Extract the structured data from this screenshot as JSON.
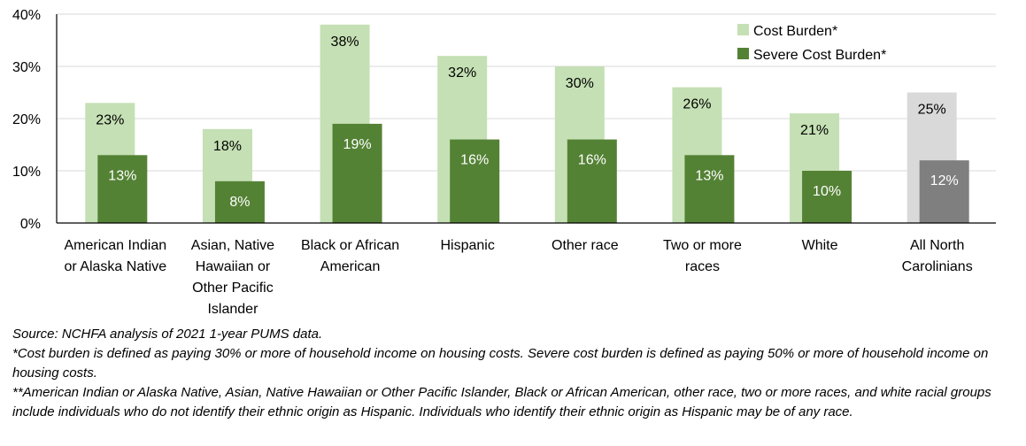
{
  "chart_data": {
    "type": "bar",
    "categories": [
      [
        "American Indian",
        "or Alaska Native"
      ],
      [
        "Asian, Native",
        "Hawaiian or",
        "Other Pacific",
        "Islander"
      ],
      [
        "Black or African",
        "American"
      ],
      [
        "Hispanic"
      ],
      [
        "Other race"
      ],
      [
        "Two or more",
        "races"
      ],
      [
        "White"
      ],
      [
        "All North",
        "Carolinians"
      ]
    ],
    "series": [
      {
        "name": "Cost Burden*",
        "values": [
          23,
          18,
          38,
          32,
          30,
          26,
          21,
          25
        ],
        "labels": [
          "23%",
          "18%",
          "38%",
          "32%",
          "30%",
          "26%",
          "21%",
          "25%"
        ],
        "color": "#c5e0b4",
        "highlight_last_color": "#d9d9d9"
      },
      {
        "name": "Severe Cost Burden*",
        "values": [
          13,
          8,
          19,
          16,
          16,
          13,
          10,
          12
        ],
        "labels": [
          "13%",
          "8%",
          "19%",
          "16%",
          "16%",
          "13%",
          "10%",
          "12%"
        ],
        "color": "#548235",
        "highlight_last_color": "#7f7f7f"
      }
    ],
    "y_ticks": [
      "0%",
      "10%",
      "20%",
      "30%",
      "40%"
    ],
    "ylim": [
      0,
      40
    ],
    "grid": true,
    "legend_position": "top-right"
  },
  "notes": {
    "source": "Source: NCHFA analysis of 2021 1-year PUMS data.",
    "definition": "*Cost burden is defined as paying 30% or more of household income on housing costs. Severe cost burden is defined as paying 50% or more of household income on housing costs.",
    "race_note": "**American Indian or Alaska Native, Asian, Native Hawaiian or Other Pacific Islander, Black or African American, other race, two or more races, and white racial groups include individuals who do not identify their ethnic origin as Hispanic. Individuals who identify their ethnic origin as Hispanic may be of any race."
  }
}
